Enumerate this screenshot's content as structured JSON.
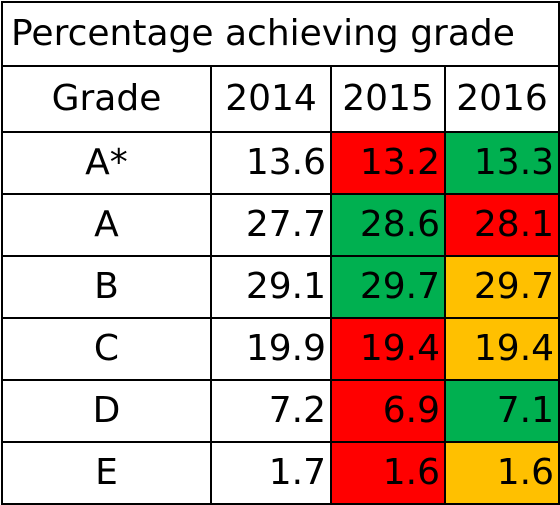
{
  "title": "Percentage achieving grade",
  "headers": {
    "grade": "Grade",
    "y2014": "2014",
    "y2015": "2015",
    "y2016": "2016"
  },
  "rows": [
    {
      "grade": "A*",
      "y2014": "13.6",
      "y2015": "13.2",
      "y2016": "13.3"
    },
    {
      "grade": "A",
      "y2014": "27.7",
      "y2015": "28.6",
      "y2016": "28.1"
    },
    {
      "grade": "B",
      "y2014": "29.1",
      "y2015": "29.7",
      "y2016": "29.7"
    },
    {
      "grade": "C",
      "y2014": "19.9",
      "y2015": "19.4",
      "y2016": "19.4"
    },
    {
      "grade": "D",
      "y2014": "7.2",
      "y2015": "6.9",
      "y2016": "7.1"
    },
    {
      "grade": "E",
      "y2014": "1.7",
      "y2015": "1.6",
      "y2016": "1.6"
    }
  ],
  "colors": {
    "red": "#ff0000",
    "green": "#00b050",
    "amber": "#ffc000"
  }
}
